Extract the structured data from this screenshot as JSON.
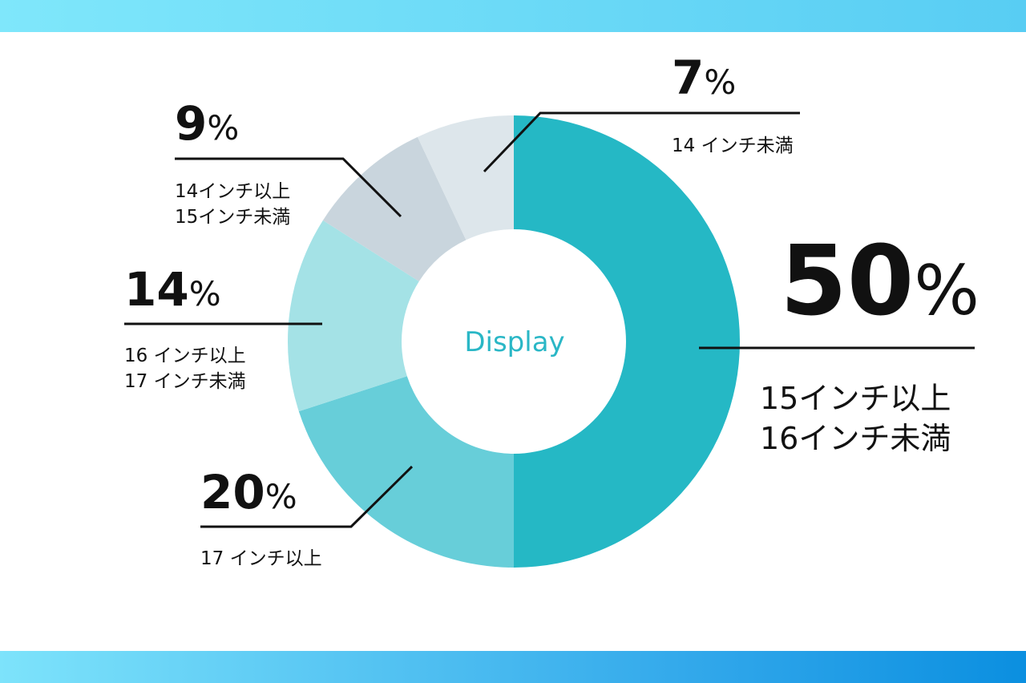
{
  "colors": {
    "band_top": "#7fe7fb",
    "band_bottom": "#2fa6ea",
    "center_text": "#2ab7c6",
    "slices": [
      "#25b8c5",
      "#67ced9",
      "#a4e2e6",
      "#c9d5dd",
      "#dde6eb"
    ]
  },
  "chart_data": {
    "type": "pie",
    "center_label": "Display",
    "title": "",
    "unit": "%",
    "legend": "none",
    "slices": [
      {
        "label_lines": [
          "15インチ以上",
          "16インチ未満"
        ],
        "value": 50,
        "pct_text": "50",
        "color": "#25b8c5"
      },
      {
        "label_lines": [
          "17 インチ以上"
        ],
        "value": 20,
        "pct_text": "20",
        "color": "#67ced9"
      },
      {
        "label_lines": [
          "16 インチ以上",
          "17 インチ未満"
        ],
        "value": 14,
        "pct_text": "14",
        "color": "#a4e2e6"
      },
      {
        "label_lines": [
          "14インチ以上",
          "15インチ未満"
        ],
        "value": 9,
        "pct_text": "9",
        "color": "#c9d5dd"
      },
      {
        "label_lines": [
          "14 インチ未満"
        ],
        "value": 7,
        "pct_text": "7",
        "color": "#dde6eb"
      }
    ]
  }
}
